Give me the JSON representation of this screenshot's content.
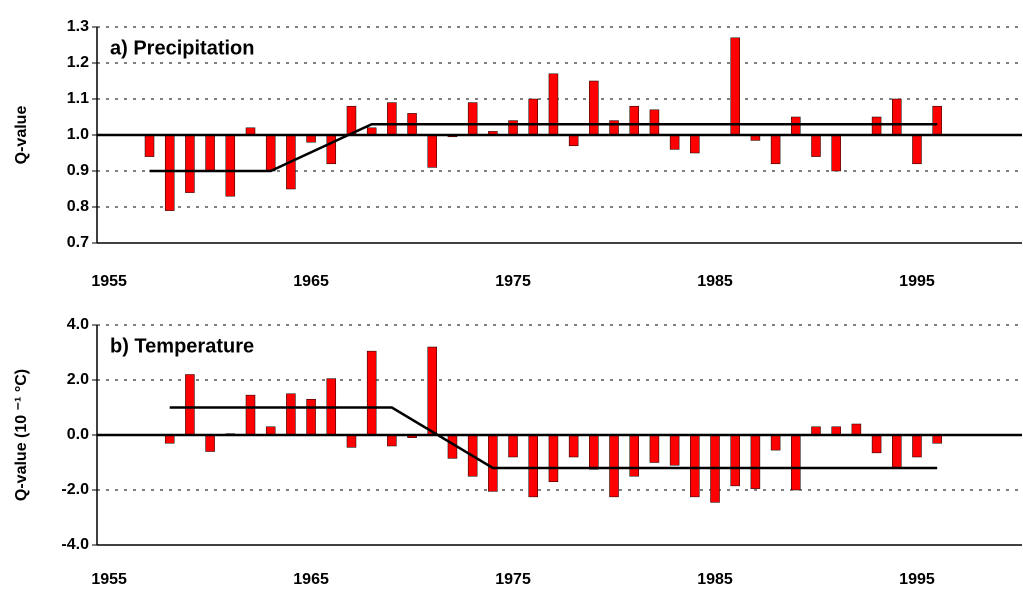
{
  "chart_data": [
    {
      "type": "bar",
      "title": "a) Precipitation",
      "y_label": "Q-value",
      "color": "#ff0000",
      "grid": true,
      "x": [
        1957,
        1958,
        1959,
        1960,
        1961,
        1962,
        1963,
        1964,
        1965,
        1966,
        1967,
        1968,
        1969,
        1970,
        1971,
        1972,
        1973,
        1974,
        1975,
        1976,
        1977,
        1978,
        1979,
        1980,
        1981,
        1982,
        1983,
        1984,
        1985,
        1986,
        1987,
        1988,
        1989,
        1990,
        1991,
        1992,
        1993,
        1994,
        1995,
        1996
      ],
      "values": [
        0.94,
        0.79,
        0.84,
        0.9,
        0.83,
        1.02,
        0.9,
        0.85,
        0.98,
        0.92,
        1.08,
        1.02,
        1.09,
        1.06,
        0.91,
        0.995,
        1.09,
        1.01,
        1.04,
        1.1,
        1.17,
        0.97,
        1.15,
        1.04,
        1.08,
        1.07,
        0.96,
        0.95,
        1.0,
        1.27,
        0.985,
        0.92,
        1.05,
        0.94,
        0.9,
        1.0,
        1.05,
        1.1,
        0.92,
        1.08
      ],
      "trend": {
        "color": "#000000",
        "x": [
          1957,
          1963,
          1968,
          1996
        ],
        "values": [
          0.9,
          0.9,
          1.03,
          1.03
        ]
      },
      "reference_line": 1.0,
      "xlim": [
        1954.4,
        2000.2
      ],
      "xticks": [
        1955,
        1965,
        1975,
        1985,
        1995
      ],
      "ylim": [
        0.7,
        1.3
      ],
      "yticks": [
        0.7,
        0.8,
        0.9,
        {
          "value": 1.0,
          "label": "1.0"
        },
        1.1,
        1.2,
        1.3
      ]
    },
    {
      "type": "bar",
      "title": "b) Temperature",
      "y_label": "Q-value (10 ⁻¹ °C)",
      "color": "#ff0000",
      "grid": true,
      "x": [
        1958,
        1959,
        1960,
        1961,
        1962,
        1963,
        1964,
        1965,
        1966,
        1967,
        1968,
        1969,
        1970,
        1971,
        1972,
        1973,
        1974,
        1975,
        1976,
        1977,
        1978,
        1979,
        1980,
        1981,
        1982,
        1983,
        1984,
        1985,
        1986,
        1987,
        1988,
        1989,
        1990,
        1991,
        1992,
        1993,
        1994,
        1995,
        1996
      ],
      "values": [
        -0.3,
        2.2,
        -0.6,
        0.05,
        1.45,
        0.3,
        1.5,
        1.3,
        2.05,
        -0.45,
        3.05,
        -0.4,
        -0.1,
        3.2,
        -0.85,
        -1.5,
        -2.05,
        -0.8,
        -2.25,
        -1.7,
        -0.8,
        -1.25,
        -2.25,
        -1.5,
        -1.0,
        -1.1,
        -2.25,
        -2.45,
        -1.85,
        -1.95,
        -0.55,
        -2.0,
        0.3,
        0.3,
        0.4,
        -0.65,
        -1.2,
        -0.8,
        -0.3
      ],
      "trend": {
        "color": "#000000",
        "x": [
          1958,
          1969,
          1974,
          1996
        ],
        "values": [
          1.0,
          1.0,
          -1.2,
          -1.2
        ]
      },
      "reference_line": 0,
      "xlim": [
        1954.4,
        2000.2
      ],
      "xticks": [
        1955,
        1965,
        1975,
        1985,
        1995
      ],
      "ylim": [
        -4,
        4
      ],
      "yticks": [
        {
          "value": -4,
          "label": "-4.0"
        },
        {
          "value": -2,
          "label": "-2.0"
        },
        {
          "value": 0,
          "label": "0.0"
        },
        {
          "value": 2,
          "label": "2.0"
        },
        {
          "value": 4,
          "label": "4.0"
        }
      ]
    }
  ]
}
